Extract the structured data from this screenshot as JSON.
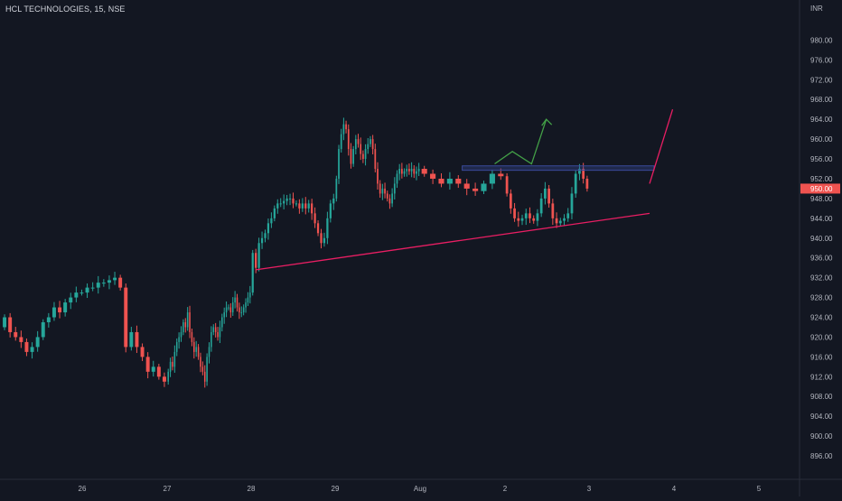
{
  "header": {
    "title": "HCL TECHNOLOGIES, 15, NSE"
  },
  "price_axis": {
    "currency": "INR",
    "current_price_label": "950.00",
    "current_price": 950.0
  },
  "colors": {
    "background": "#131722",
    "up": "#26a69a",
    "down": "#ef5350",
    "trendline": "#e91e63",
    "zone": "#3a4a9a",
    "arrow": "#43a047",
    "grid": "#1e2230",
    "axis_text": "#b2b5be"
  },
  "chart_data": {
    "type": "candlestick",
    "title": "HCL TECHNOLOGIES, 15, NSE",
    "ylabel": "INR",
    "ylim": [
      894,
      983
    ],
    "y_ticks": [
      "980.00",
      "976.00",
      "972.00",
      "968.00",
      "964.00",
      "960.00",
      "956.00",
      "952.00",
      "948.00",
      "944.00",
      "940.00",
      "936.00",
      "932.00",
      "928.00",
      "924.00",
      "920.00",
      "916.00",
      "912.00",
      "908.00",
      "904.00",
      "900.00",
      "896.00"
    ],
    "x_ticks": [
      "26",
      "27",
      "28",
      "29",
      "Aug",
      "2",
      "3",
      "4",
      "5"
    ],
    "grid": false,
    "last_price": 950.0,
    "segments": [
      {
        "from": "26",
        "to": "27",
        "closes": [
          924,
          921,
          920,
          919,
          917,
          918,
          920,
          923,
          924,
          926,
          925,
          927,
          928,
          929,
          929,
          930,
          930,
          931,
          931,
          931.5,
          932,
          930,
          918,
          921,
          918,
          916,
          913,
          914,
          912,
          911
        ]
      },
      {
        "from": "27",
        "to": "28",
        "closes": [
          913,
          915,
          914,
          917,
          919,
          920,
          921,
          923,
          922,
          925,
          921,
          919,
          917,
          918,
          916,
          914,
          913,
          911,
          916,
          918,
          921,
          922,
          921,
          920,
          922,
          924,
          925,
          926,
          926,
          925,
          927,
          928,
          926,
          925,
          925,
          926,
          927,
          928,
          929
        ]
      },
      {
        "from": "28",
        "to": "29",
        "closes": [
          937,
          934,
          939,
          940,
          941,
          943,
          944,
          946,
          947,
          947,
          947.5,
          948,
          948,
          947,
          947,
          946,
          947,
          946,
          947,
          945,
          943,
          941,
          939,
          940,
          944,
          947,
          948
        ]
      },
      {
        "from": "29",
        "to": "Aug",
        "closes": [
          952,
          958,
          961,
          963,
          962,
          958,
          955,
          958,
          960,
          959,
          957,
          956,
          958,
          959,
          960,
          958,
          954,
          951,
          949,
          950,
          949,
          948,
          947,
          949,
          951,
          953,
          954,
          953,
          953.5,
          954,
          953.5,
          954,
          953,
          953.5,
          954
        ]
      },
      {
        "from": "Aug",
        "to": "2",
        "closes": [
          953,
          952,
          951,
          952,
          951,
          950,
          949.5,
          951,
          953,
          952.5
        ]
      },
      {
        "from": "2",
        "to": "3",
        "closes": [
          949,
          946,
          944,
          943.5,
          944,
          945,
          944,
          943.5,
          945,
          948,
          950,
          947,
          944,
          943,
          943.5,
          944,
          945,
          949,
          953,
          954,
          952,
          950
        ]
      }
    ],
    "annotations": {
      "triangle_upper": {
        "from": [
          961,
          966
        ],
        "to": [
          965.5,
          951
        ]
      },
      "triangle_lower": {
        "from": [
          938.8,
          933.6
        ],
        "to": [
          965.5,
          945
        ]
      },
      "breakout_zone": {
        "low": 953.7,
        "high": 954.6
      },
      "projection_arrow": [
        [
          955,
          955
        ],
        [
          956.2,
          957.5
        ],
        [
          957.5,
          955
        ],
        [
          958.5,
          964
        ]
      ]
    }
  }
}
